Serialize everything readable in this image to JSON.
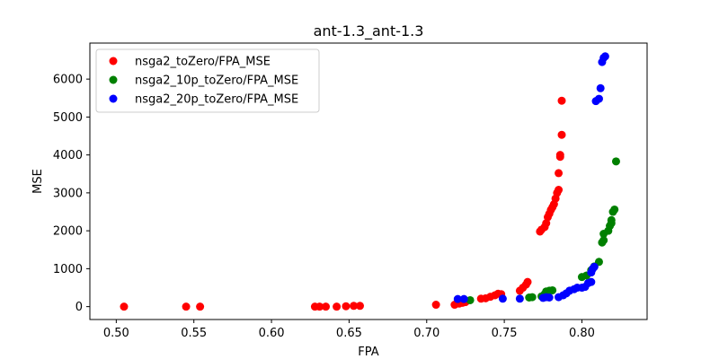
{
  "chart_data": {
    "type": "scatter",
    "title": "ant-1.3_ant-1.3",
    "xlabel": "FPA",
    "ylabel": "MSE",
    "xlim": [
      0.483,
      0.842
    ],
    "ylim": [
      -340,
      6950
    ],
    "xticks": [
      "0.50",
      "0.55",
      "0.60",
      "0.65",
      "0.70",
      "0.75",
      "0.80"
    ],
    "xtick_values": [
      0.5,
      0.55,
      0.6,
      0.65,
      0.7,
      0.75,
      0.8
    ],
    "yticks": [
      "0",
      "1000",
      "2000",
      "3000",
      "4000",
      "5000",
      "6000"
    ],
    "ytick_values": [
      0,
      1000,
      2000,
      3000,
      4000,
      5000,
      6000
    ],
    "grid": false,
    "legend_position": "top-left",
    "series": [
      {
        "name": "nsga2_toZero/FPA_MSE",
        "color": "#ff0000",
        "points": [
          [
            0.505,
            0
          ],
          [
            0.545,
            0
          ],
          [
            0.554,
            0
          ],
          [
            0.628,
            0
          ],
          [
            0.631,
            0
          ],
          [
            0.635,
            0
          ],
          [
            0.642,
            0
          ],
          [
            0.648,
            10
          ],
          [
            0.653,
            20
          ],
          [
            0.657,
            20
          ],
          [
            0.706,
            50
          ],
          [
            0.718,
            50
          ],
          [
            0.721,
            80
          ],
          [
            0.723,
            100
          ],
          [
            0.725,
            120
          ],
          [
            0.735,
            210
          ],
          [
            0.738,
            220
          ],
          [
            0.741,
            260
          ],
          [
            0.744,
            300
          ],
          [
            0.746,
            340
          ],
          [
            0.748,
            330
          ],
          [
            0.76,
            420
          ],
          [
            0.762,
            500
          ],
          [
            0.764,
            580
          ],
          [
            0.765,
            650
          ],
          [
            0.773,
            1980
          ],
          [
            0.774,
            2030
          ],
          [
            0.776,
            2100
          ],
          [
            0.777,
            2200
          ],
          [
            0.778,
            2360
          ],
          [
            0.779,
            2450
          ],
          [
            0.78,
            2550
          ],
          [
            0.781,
            2620
          ],
          [
            0.782,
            2700
          ],
          [
            0.783,
            2850
          ],
          [
            0.784,
            3000
          ],
          [
            0.785,
            3080
          ],
          [
            0.785,
            3520
          ],
          [
            0.786,
            3950
          ],
          [
            0.786,
            4000
          ],
          [
            0.787,
            4530
          ],
          [
            0.787,
            5430
          ]
        ]
      },
      {
        "name": "nsga2_10p_toZero/FPA_MSE",
        "color": "#008000",
        "points": [
          [
            0.728,
            170
          ],
          [
            0.766,
            240
          ],
          [
            0.768,
            250
          ],
          [
            0.774,
            270
          ],
          [
            0.776,
            330
          ],
          [
            0.777,
            400
          ],
          [
            0.779,
            420
          ],
          [
            0.781,
            430
          ],
          [
            0.8,
            780
          ],
          [
            0.803,
            820
          ],
          [
            0.806,
            960
          ],
          [
            0.808,
            1060
          ],
          [
            0.811,
            1180
          ],
          [
            0.813,
            1690
          ],
          [
            0.814,
            1750
          ],
          [
            0.814,
            1920
          ],
          [
            0.817,
            2000
          ],
          [
            0.818,
            2130
          ],
          [
            0.819,
            2200
          ],
          [
            0.819,
            2280
          ],
          [
            0.82,
            2500
          ],
          [
            0.821,
            2560
          ],
          [
            0.822,
            3830
          ]
        ]
      },
      {
        "name": "nsga2_20p_toZero/FPA_MSE",
        "color": "#0000ff",
        "points": [
          [
            0.72,
            200
          ],
          [
            0.724,
            200
          ],
          [
            0.749,
            210
          ],
          [
            0.76,
            210
          ],
          [
            0.775,
            230
          ],
          [
            0.777,
            250
          ],
          [
            0.779,
            240
          ],
          [
            0.785,
            250
          ],
          [
            0.788,
            300
          ],
          [
            0.79,
            350
          ],
          [
            0.792,
            420
          ],
          [
            0.795,
            460
          ],
          [
            0.797,
            500
          ],
          [
            0.8,
            500
          ],
          [
            0.802,
            520
          ],
          [
            0.804,
            620
          ],
          [
            0.806,
            650
          ],
          [
            0.806,
            900
          ],
          [
            0.807,
            1000
          ],
          [
            0.808,
            1050
          ],
          [
            0.809,
            5420
          ],
          [
            0.811,
            5480
          ],
          [
            0.812,
            5760
          ],
          [
            0.813,
            6450
          ],
          [
            0.814,
            6560
          ],
          [
            0.815,
            6600
          ]
        ]
      }
    ]
  }
}
